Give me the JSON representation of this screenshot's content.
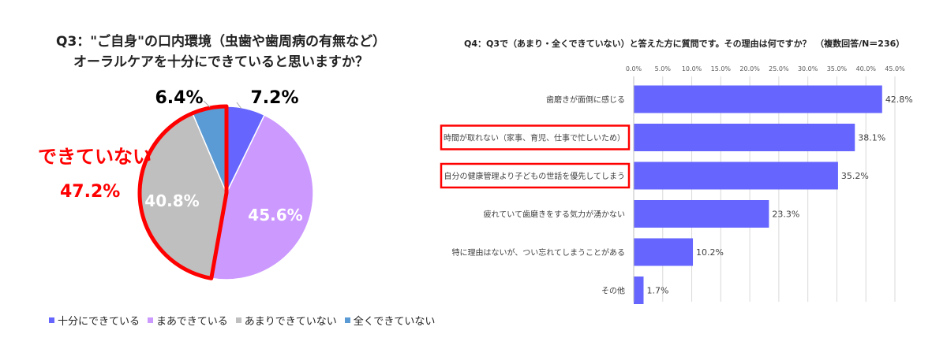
{
  "colors": {
    "pie": [
      "#6666ff",
      "#cc99ff",
      "#bfbfbf",
      "#5b9bd5"
    ],
    "bar": "#6666ff",
    "highlight": "#ff0000"
  },
  "q3": {
    "title_line1": "Q3：\"ご自身\"の口内環境（虫歯や歯周病の有無など）",
    "title_line2": "オーラルケアを十分にできていると思いますか？",
    "callout_line1": "できていない",
    "callout_line2": "47.2%"
  },
  "q4": {
    "title": "Q4：Q3で（あまり・全くできていない）と答えた方に質問です。その理由は何ですか？　（複数回答/N＝236）"
  },
  "chart_data": [
    {
      "type": "pie",
      "categories": [
        "十分にできている",
        "まあできている",
        "あまりできていない",
        "全くできていない"
      ],
      "values": [
        7.2,
        45.6,
        40.8,
        6.4
      ],
      "labels": [
        "7.2%",
        "45.6%",
        "40.8%",
        "6.4%"
      ],
      "legend_position": "bottom"
    },
    {
      "type": "bar",
      "orientation": "horizontal",
      "categories": [
        "歯磨きが面倒に感じる",
        "時間が取れない（家事、育児、仕事で忙しいため）",
        "自分の健康管理より子どもの世話を優先してしまう",
        "疲れていて歯磨きをする気力が湧かない",
        "特に理由はないが、つい忘れてしまうことがある",
        "その他"
      ],
      "values": [
        42.8,
        38.1,
        35.2,
        23.3,
        10.2,
        1.7
      ],
      "labels": [
        "42.8%",
        "38.1%",
        "35.2%",
        "23.3%",
        "10.2%",
        "1.7%"
      ],
      "xlim": [
        0,
        45
      ],
      "ticks": [
        "0.0%",
        "5.0%",
        "10.0%",
        "15.0%",
        "20.0%",
        "25.0%",
        "30.0%",
        "35.0%",
        "40.0%",
        "45.0%"
      ],
      "highlighted_categories": [
        1,
        2
      ],
      "grid": true
    }
  ]
}
